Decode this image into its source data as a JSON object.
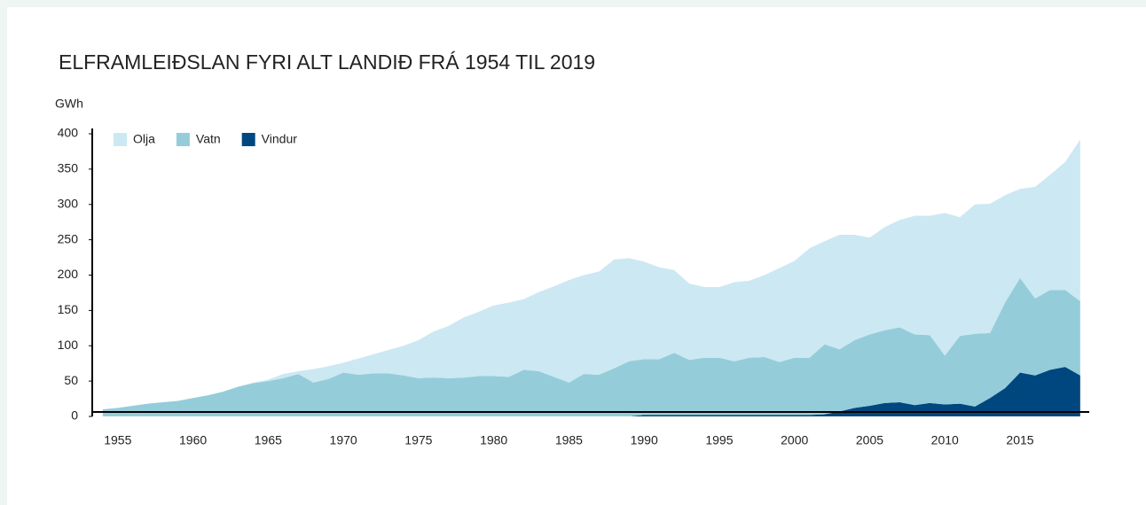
{
  "chart_data": {
    "type": "stacked_area",
    "title": "ELFRAMLEIÐSLAN FYRI ALT LANDIÐ FRÁ 1954 TIL 2019",
    "y_label": "GWh",
    "x": [
      1954,
      1955,
      1956,
      1957,
      1958,
      1959,
      1960,
      1961,
      1962,
      1963,
      1964,
      1965,
      1966,
      1967,
      1968,
      1969,
      1970,
      1971,
      1972,
      1973,
      1974,
      1975,
      1976,
      1977,
      1978,
      1979,
      1980,
      1981,
      1982,
      1983,
      1984,
      1985,
      1986,
      1987,
      1988,
      1989,
      1990,
      1991,
      1992,
      1993,
      1994,
      1995,
      1996,
      1997,
      1998,
      1999,
      2000,
      2001,
      2002,
      2003,
      2004,
      2005,
      2006,
      2007,
      2008,
      2009,
      2010,
      2011,
      2012,
      2013,
      2014,
      2015,
      2016,
      2017,
      2018,
      2019
    ],
    "series": [
      {
        "name": "Vindur",
        "color": "#00477f",
        "values": [
          0,
          0,
          0,
          0,
          0,
          0,
          0,
          0,
          0,
          0,
          0,
          0,
          0,
          0,
          0,
          0,
          0,
          0,
          0,
          0,
          0,
          0,
          0,
          0,
          0,
          0,
          0,
          0,
          0,
          0,
          0,
          0,
          0,
          0,
          0,
          0,
          2,
          2,
          2,
          2,
          2,
          2,
          2,
          2,
          2,
          2,
          2,
          2,
          3,
          7,
          12,
          15,
          19,
          20,
          16,
          19,
          17,
          18,
          14,
          26,
          40,
          62,
          58,
          66,
          70,
          58
        ]
      },
      {
        "name": "Vatn",
        "color": "#94cdd9",
        "values": [
          10,
          12,
          15,
          18,
          20,
          22,
          26,
          30,
          35,
          42,
          47,
          50,
          54,
          60,
          48,
          53,
          62,
          59,
          61,
          61,
          58,
          54,
          55,
          54,
          55,
          57,
          57,
          56,
          66,
          64,
          56,
          48,
          60,
          59,
          68,
          78,
          79,
          79,
          88,
          78,
          81,
          81,
          76,
          81,
          82,
          75,
          81,
          81,
          99,
          88,
          96,
          101,
          103,
          106,
          100,
          96,
          69,
          96,
          103,
          92,
          121,
          134,
          109,
          113,
          109,
          105
        ]
      },
      {
        "name": "Olja",
        "color": "#cce8f3",
        "values": [
          0,
          0,
          0,
          0,
          0,
          0,
          0,
          0,
          0,
          0,
          1,
          2,
          6,
          4,
          19,
          18,
          14,
          23,
          27,
          33,
          42,
          54,
          65,
          74,
          85,
          91,
          100,
          105,
          100,
          112,
          128,
          145,
          140,
          146,
          154,
          146,
          138,
          130,
          117,
          108,
          100,
          100,
          112,
          109,
          116,
          133,
          137,
          155,
          146,
          162,
          149,
          137,
          146,
          152,
          168,
          169,
          202,
          168,
          183,
          183,
          152,
          126,
          158,
          163,
          181,
          229
        ]
      }
    ],
    "legend_order": [
      "Olja",
      "Vatn",
      "Vindur"
    ],
    "xlim": [
      1953.3,
      2019.6
    ],
    "xticks": [
      1955,
      1960,
      1965,
      1970,
      1975,
      1980,
      1985,
      1990,
      1995,
      2000,
      2005,
      2010,
      2015
    ],
    "ylim": [
      0,
      400
    ],
    "yticks": [
      0,
      50,
      100,
      150,
      200,
      250,
      300,
      350,
      400
    ],
    "grid": false
  }
}
